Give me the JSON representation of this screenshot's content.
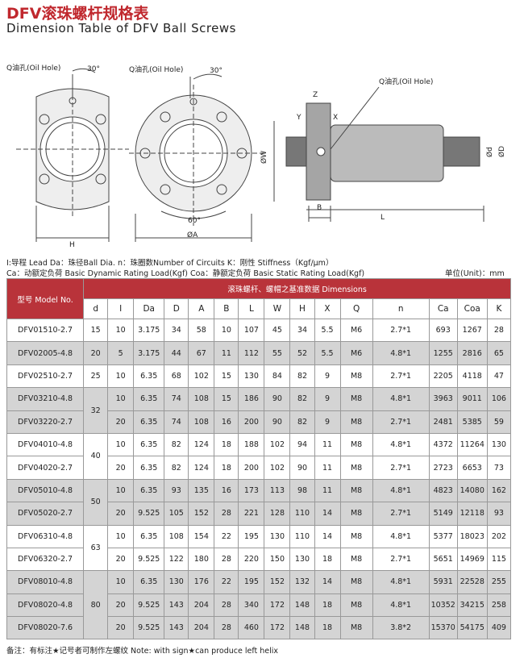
{
  "header": {
    "title_cn": "DFV滚珠螺杆规格表",
    "title_en": "Dimension Table of DFV Ball Screws"
  },
  "drawings": {
    "left": {
      "oil_hole": "Q油孔(Oil Hole)",
      "angle": "30°",
      "h": "H"
    },
    "middle": {
      "oil_hole": "Q油孔(Oil Hole)",
      "angle": "30°",
      "angle2": "60°",
      "a": "ØA",
      "w": "ØW"
    },
    "right": {
      "oil_hole": "Q油孔(Oil Hole)",
      "z": "Z",
      "y": "Y",
      "x": "X",
      "b": "B",
      "l": "L",
      "d_small": "Ød",
      "d_big": "ØD"
    }
  },
  "legend": {
    "line1": "I:导程 Lead Da：珠径Ball Dia.  n：珠圈数Number of Circuits  K：刚性 Stiffness（Kgf/μm）",
    "line2": "Ca：动额定负荷 Basic Dynamic Rating Load(Kgf)  Coa：静额定负荷 Basic Static Rating Load(Kgf)",
    "unit": "单位(Unit)：mm"
  },
  "table": {
    "model_header": "型号 Model No.",
    "group_header": "滚珠螺杆、螺帽之基准数据 Dimensions",
    "columns": [
      "d",
      "I",
      "Da",
      "D",
      "A",
      "B",
      "L",
      "W",
      "H",
      "X",
      "Q",
      "n",
      "Ca",
      "Coa",
      "K"
    ],
    "groups": [
      {
        "d": 15,
        "rows": [
          [
            "DFV01510-2.7",
            10,
            3.175,
            34,
            58,
            10,
            107,
            45,
            34,
            5.5,
            "M6",
            "2.7*1",
            693,
            1267,
            28
          ]
        ]
      },
      {
        "d": 20,
        "rows": [
          [
            "DFV02005-4.8",
            5,
            3.175,
            44,
            67,
            11,
            112,
            55,
            52,
            5.5,
            "M6",
            "4.8*1",
            1255,
            2816,
            65
          ]
        ]
      },
      {
        "d": 25,
        "rows": [
          [
            "DFV02510-2.7",
            10,
            6.35,
            68,
            102,
            15,
            130,
            84,
            82,
            9,
            "M8",
            "2.7*1",
            2205,
            4118,
            47
          ]
        ]
      },
      {
        "d": 32,
        "rows": [
          [
            "DFV03210-4.8",
            10,
            6.35,
            74,
            108,
            15,
            186,
            90,
            82,
            9,
            "M8",
            "4.8*1",
            3963,
            9011,
            106
          ],
          [
            "DFV03220-2.7",
            20,
            6.35,
            74,
            108,
            16,
            200,
            90,
            82,
            9,
            "M8",
            "2.7*1",
            2481,
            5385,
            59
          ]
        ]
      },
      {
        "d": 40,
        "rows": [
          [
            "DFV04010-4.8",
            10,
            6.35,
            82,
            124,
            18,
            188,
            102,
            94,
            11,
            "M8",
            "4.8*1",
            4372,
            11264,
            130
          ],
          [
            "DFV04020-2.7",
            20,
            6.35,
            82,
            124,
            18,
            200,
            102,
            90,
            11,
            "M8",
            "2.7*1",
            2723,
            6653,
            73
          ]
        ]
      },
      {
        "d": 50,
        "rows": [
          [
            "DFV05010-4.8",
            10,
            6.35,
            93,
            135,
            16,
            173,
            113,
            98,
            11,
            "M8",
            "4.8*1",
            4823,
            14080,
            162
          ],
          [
            "DFV05020-2.7",
            20,
            9.525,
            105,
            152,
            28,
            221,
            128,
            110,
            14,
            "M8",
            "2.7*1",
            5149,
            12118,
            93
          ]
        ]
      },
      {
        "d": 63,
        "rows": [
          [
            "DFV06310-4.8",
            10,
            6.35,
            108,
            154,
            22,
            195,
            130,
            110,
            14,
            "M8",
            "4.8*1",
            5377,
            18023,
            202
          ],
          [
            "DFV06320-2.7",
            20,
            9.525,
            122,
            180,
            28,
            220,
            150,
            130,
            18,
            "M8",
            "2.7*1",
            5651,
            14969,
            115
          ]
        ]
      },
      {
        "d": 80,
        "rows": [
          [
            "DFV08010-4.8",
            10,
            6.35,
            130,
            176,
            22,
            195,
            152,
            132,
            14,
            "M8",
            "4.8*1",
            5931,
            22528,
            255
          ],
          [
            "DFV08020-4.8",
            20,
            9.525,
            143,
            204,
            28,
            340,
            172,
            148,
            18,
            "M8",
            "4.8*1",
            10352,
            34215,
            258
          ],
          [
            "DFV08020-7.6",
            20,
            9.525,
            143,
            204,
            28,
            460,
            172,
            148,
            18,
            "M8",
            "3.8*2",
            15370,
            54175,
            409
          ]
        ]
      }
    ]
  },
  "note": "备注：有标注★记号者可制作左螺纹    Note: with sign★can produce left helix"
}
